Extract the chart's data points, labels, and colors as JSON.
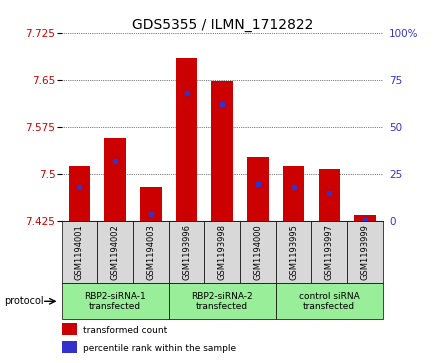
{
  "title": "GDS5355 / ILMN_1712822",
  "samples": [
    "GSM1194001",
    "GSM1194002",
    "GSM1194003",
    "GSM1193996",
    "GSM1193998",
    "GSM1194000",
    "GSM1193995",
    "GSM1193997",
    "GSM1193999"
  ],
  "red_values": [
    7.513,
    7.558,
    7.48,
    7.685,
    7.648,
    7.527,
    7.513,
    7.508,
    7.435
  ],
  "blue_values": [
    18,
    32,
    4,
    68,
    62,
    20,
    18,
    15,
    1
  ],
  "y_min": 7.425,
  "y_max": 7.725,
  "y_ticks": [
    7.425,
    7.5,
    7.575,
    7.65,
    7.725
  ],
  "y2_ticks": [
    0,
    25,
    50,
    75,
    100
  ],
  "groups": [
    {
      "label": "RBP2-siRNA-1\ntransfected",
      "start": 0,
      "end": 3
    },
    {
      "label": "RBP2-siRNA-2\ntransfected",
      "start": 3,
      "end": 6
    },
    {
      "label": "control siRNA\ntransfected",
      "start": 6,
      "end": 9
    }
  ],
  "bar_width": 0.6,
  "red_color": "#cc0000",
  "blue_color": "#3333cc",
  "baseline": 7.425,
  "group_bg_color": "#99ee99",
  "sample_bg_color": "#d8d8d8",
  "legend_red": "transformed count",
  "legend_blue": "percentile rank within the sample",
  "protocol_label": "protocol",
  "title_fontsize": 10,
  "axis_label_color_left": "#cc0000",
  "axis_label_color_right": "#3333cc"
}
